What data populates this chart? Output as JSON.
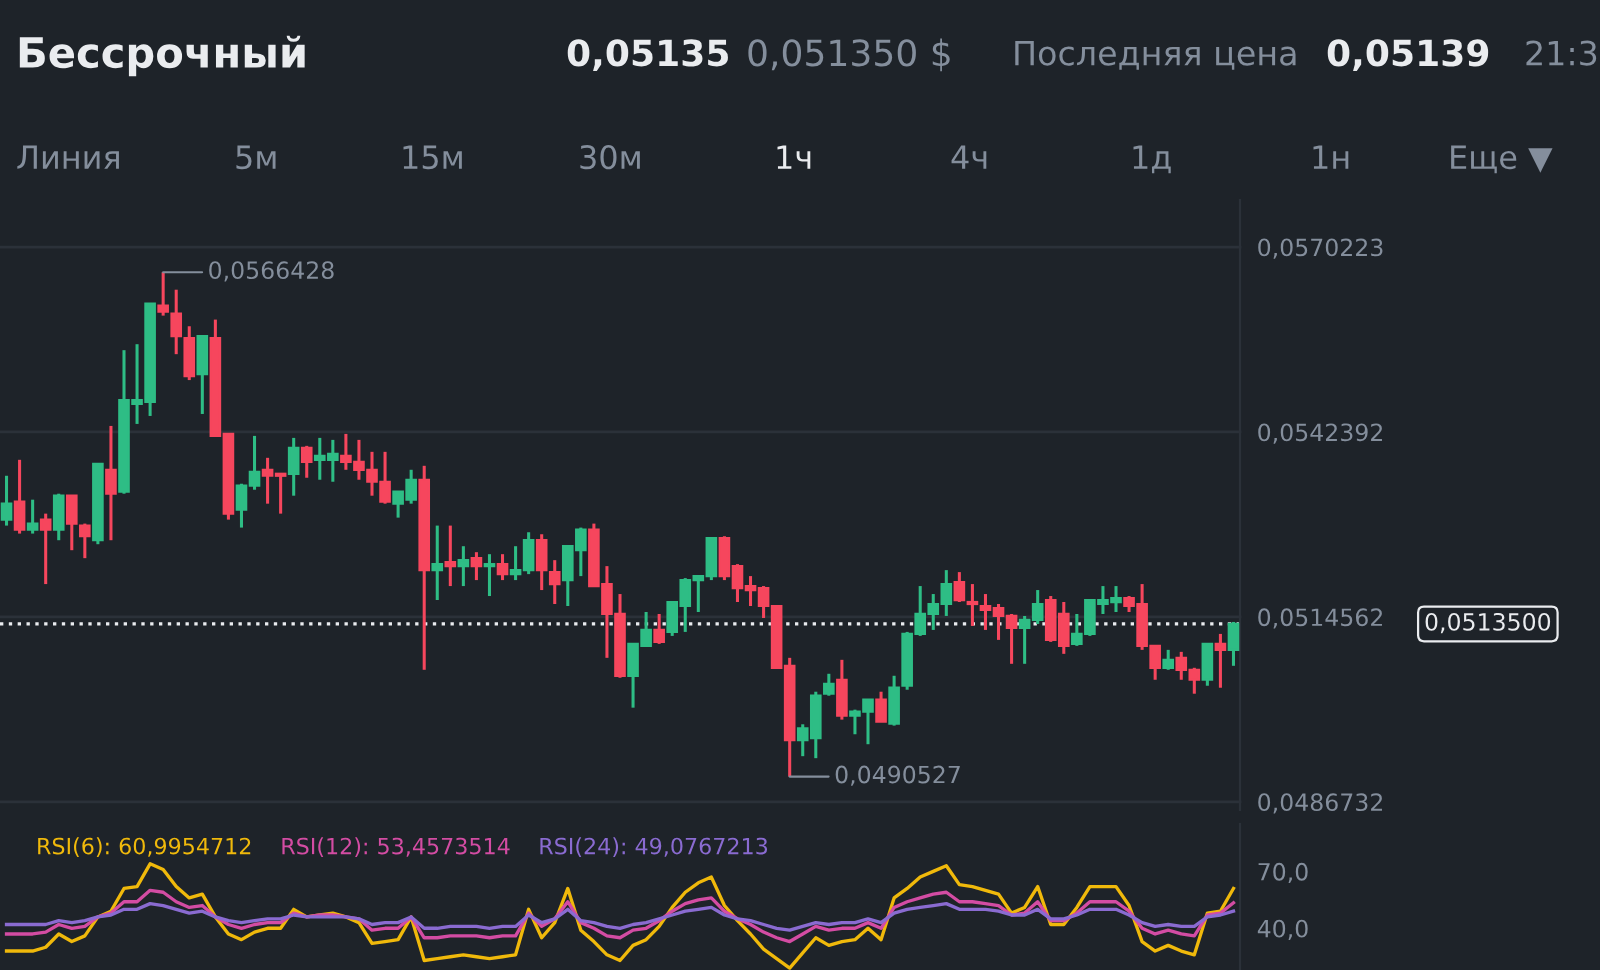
{
  "chart_data": [
    {
      "type": "candlestick",
      "title": "Бессрочный",
      "annotations": [
        "0,05135",
        "0,051350 $",
        "Последняя цена",
        "0,05139",
        "21:3",
        "Линия",
        "5м",
        "15м",
        "30м",
        "1ч",
        "4ч",
        "1д",
        "1н",
        "Еще ▼",
        "0,0566428",
        "0,0490527"
      ],
      "categories": [
        null,
        null,
        null,
        null,
        null,
        null,
        null,
        null,
        null,
        null,
        null,
        null,
        null,
        null,
        null,
        null,
        null,
        null,
        null,
        null,
        null,
        null,
        null,
        null,
        null,
        null,
        null,
        null,
        null,
        null,
        null,
        null,
        null,
        null,
        null,
        null,
        null,
        null,
        null,
        null,
        null,
        null,
        null,
        null,
        null,
        null,
        null,
        null,
        null,
        null,
        null,
        null,
        null,
        null,
        null,
        null,
        null,
        null,
        null,
        null,
        null,
        null,
        null,
        null,
        null,
        null,
        null,
        null,
        null,
        null,
        null,
        null,
        null,
        null,
        null,
        null,
        null,
        null,
        null,
        null,
        null,
        null,
        null,
        null,
        null,
        null,
        null,
        null,
        null,
        null,
        null,
        null,
        null,
        null,
        null
      ],
      "ohlc": [
        [
          0.05292,
          0.05358,
          0.05283,
          0.05316
        ],
        [
          0.05319,
          0.05382,
          0.05271,
          0.05277
        ],
        [
          0.05277,
          0.05322,
          0.05271,
          0.05286
        ],
        [
          0.05292,
          0.05301,
          0.05195,
          0.05277
        ],
        [
          0.05277,
          0.05331,
          0.05261,
          0.05328
        ],
        [
          0.05328,
          0.05328,
          0.05246,
          0.05286
        ],
        [
          0.05283,
          0.05286,
          0.05234,
          0.05267
        ],
        [
          0.05261,
          0.05376,
          0.05255,
          0.05376
        ],
        [
          0.05367,
          0.05433,
          0.05261,
          0.05331
        ],
        [
          0.05334,
          0.05547,
          0.05331,
          0.05472
        ],
        [
          0.05466,
          0.05556,
          0.05436,
          0.05472
        ],
        [
          0.05469,
          0.05617,
          0.05448,
          0.05617
        ],
        [
          0.05614,
          0.0566428,
          0.05599,
          0.05605
        ],
        [
          0.05602,
          0.05638,
          0.05541,
          0.05568
        ],
        [
          0.05565,
          0.05583,
          0.05502,
          0.05508
        ],
        [
          0.05511,
          0.05568,
          0.05451,
          0.05568
        ],
        [
          0.05565,
          0.05593,
          0.05418,
          0.05418
        ],
        [
          0.05421,
          0.05421,
          0.05292,
          0.05301
        ],
        [
          0.05307,
          0.05346,
          0.0528,
          0.05343
        ],
        [
          0.05343,
          0.05418,
          0.05337,
          0.05364
        ],
        [
          0.05367,
          0.05385,
          0.05316,
          0.05358
        ],
        [
          0.05361,
          0.05361,
          0.05301,
          0.05358
        ],
        [
          0.05361,
          0.05415,
          0.05328,
          0.054
        ],
        [
          0.054,
          0.05403,
          0.05355,
          0.05379
        ],
        [
          0.05382,
          0.05415,
          0.05352,
          0.05388
        ],
        [
          0.05382,
          0.05412,
          0.05349,
          0.05391
        ],
        [
          0.05388,
          0.05421,
          0.05367,
          0.05379
        ],
        [
          0.05379,
          0.05412,
          0.05352,
          0.05367
        ],
        [
          0.05367,
          0.05394,
          0.05328,
          0.05349
        ],
        [
          0.05349,
          0.05394,
          0.05316,
          0.05319
        ],
        [
          0.05316,
          0.05334,
          0.05295,
          0.05334
        ],
        [
          0.05322,
          0.05367,
          0.05316,
          0.05352
        ],
        [
          0.05352,
          0.05373,
          0.05066,
          0.05216
        ],
        [
          0.05216,
          0.05283,
          0.05171,
          0.05225
        ],
        [
          0.05228,
          0.05283,
          0.05192,
          0.05222
        ],
        [
          0.05222,
          0.05252,
          0.05192,
          0.05231
        ],
        [
          0.05234,
          0.05243,
          0.05201,
          0.05222
        ],
        [
          0.05222,
          0.0524,
          0.05177,
          0.05225
        ],
        [
          0.05225,
          0.0524,
          0.05201,
          0.0521
        ],
        [
          0.0521,
          0.05252,
          0.05201,
          0.05216
        ],
        [
          0.05216,
          0.05273,
          0.0521,
          0.05261
        ],
        [
          0.05261,
          0.0527,
          0.05186,
          0.05216
        ],
        [
          0.05213,
          0.05231,
          0.05165,
          0.05195
        ],
        [
          0.05201,
          0.05252,
          0.05162,
          0.05252
        ],
        [
          0.05246,
          0.0528,
          0.05207,
          0.05277
        ],
        [
          0.05277,
          0.05286,
          0.05192,
          0.05192
        ],
        [
          0.05195,
          0.05222,
          0.05084,
          0.0515
        ],
        [
          0.0515,
          0.0518,
          0.05054,
          0.05057
        ],
        [
          0.05057,
          0.05105,
          0.05009,
          0.05105
        ],
        [
          0.05102,
          0.05153,
          0.05102,
          0.05126
        ],
        [
          0.05126,
          0.0515,
          0.05105,
          0.05108
        ],
        [
          0.05123,
          0.05168,
          0.05117,
          0.05168
        ],
        [
          0.05162,
          0.05204,
          0.05123,
          0.05201
        ],
        [
          0.05201,
          0.05207,
          0.05153,
          0.05207
        ],
        [
          0.05207,
          0.05264,
          0.05201,
          0.05264
        ],
        [
          0.05264,
          0.05267,
          0.05201,
          0.05207
        ],
        [
          0.05222,
          0.05225,
          0.05168,
          0.05189
        ],
        [
          0.05192,
          0.05207,
          0.05162,
          0.05186
        ],
        [
          0.05189,
          0.05192,
          0.05144,
          0.05162
        ],
        [
          0.05162,
          0.05162,
          0.05069,
          0.05069
        ],
        [
          0.05072,
          0.05084,
          0.0490527,
          0.0496
        ],
        [
          0.0496,
          0.04984,
          0.04936,
          0.04978
        ],
        [
          0.04963,
          0.05033,
          0.04933,
          0.05027
        ],
        [
          0.0503,
          0.0506,
          0.05027,
          0.05045
        ],
        [
          0.05051,
          0.05081,
          0.04991,
          0.04997
        ],
        [
          0.04997,
          0.05006,
          0.04969,
          0.05003
        ],
        [
          0.05003,
          0.05021,
          0.04954,
          0.05021
        ],
        [
          0.05021,
          0.05033,
          0.04988,
          0.04988
        ],
        [
          0.04985,
          0.05057,
          0.04982,
          0.05039
        ],
        [
          0.05042,
          0.05123,
          0.05036,
          0.0512
        ],
        [
          0.0512,
          0.05192,
          0.05117,
          0.0515
        ],
        [
          0.0515,
          0.0518,
          0.05126,
          0.05165
        ],
        [
          0.05165,
          0.05216,
          0.05147,
          0.05195
        ],
        [
          0.05198,
          0.05213,
          0.05168,
          0.05171
        ],
        [
          0.05168,
          0.05195,
          0.05132,
          0.05165
        ],
        [
          0.05162,
          0.0518,
          0.05126,
          0.05156
        ],
        [
          0.05159,
          0.05165,
          0.05111,
          0.05147
        ],
        [
          0.05147,
          0.0515,
          0.05075,
          0.05129
        ],
        [
          0.05129,
          0.05147,
          0.05075,
          0.05141
        ],
        [
          0.05141,
          0.05186,
          0.05135,
          0.05165
        ],
        [
          0.05171,
          0.05177,
          0.05108,
          0.05111
        ],
        [
          0.0515,
          0.05168,
          0.0509,
          0.05102
        ],
        [
          0.05105,
          0.0515,
          0.05102,
          0.0512
        ],
        [
          0.0512,
          0.05171,
          0.05117,
          0.05171
        ],
        [
          0.05165,
          0.05192,
          0.0515,
          0.05171
        ],
        [
          0.05168,
          0.05192,
          0.05153,
          0.05174
        ],
        [
          0.05174,
          0.05177,
          0.05153,
          0.05162
        ],
        [
          0.05165,
          0.05195,
          0.05096,
          0.05102
        ],
        [
          0.05102,
          0.05102,
          0.05051,
          0.05069
        ],
        [
          0.05069,
          0.05096,
          0.05066,
          0.05081
        ],
        [
          0.05084,
          0.05093,
          0.05051,
          0.05066
        ],
        [
          0.05066,
          0.05069,
          0.0503,
          0.05051
        ],
        [
          0.05051,
          0.05105,
          0.05042,
          0.05105
        ],
        [
          0.05105,
          0.0512,
          0.05039,
          0.05096
        ],
        [
          0.05096,
          0.05138,
          0.05072,
          0.05135
        ]
      ],
      "ylim": [
        0.04855,
        0.05773
      ],
      "yticks": [
        {
          "value": 0.0570223,
          "label": "0,0570223"
        },
        {
          "value": 0.0542392,
          "label": "0,0542392"
        },
        {
          "value": 0.0514562,
          "label": "0,0514562"
        },
        {
          "value": 0.0486732,
          "label": "0,0486732"
        }
      ],
      "ref_lines": [
        {
          "axis": "y",
          "value": 0.05135,
          "label": "0,0513500",
          "line_style": "dotted",
          "color": "#eaecef"
        }
      ],
      "grid": "y",
      "tick_labels": "y"
    },
    {
      "type": "line",
      "categories": [
        null,
        null,
        null,
        null,
        null,
        null,
        null,
        null,
        null,
        null,
        null,
        null,
        null,
        null,
        null,
        null,
        null,
        null,
        null,
        null,
        null,
        null,
        null,
        null,
        null,
        null,
        null,
        null,
        null,
        null,
        null,
        null,
        null,
        null,
        null,
        null,
        null,
        null,
        null,
        null,
        null,
        null,
        null,
        null,
        null,
        null,
        null,
        null,
        null,
        null,
        null,
        null,
        null,
        null,
        null,
        null,
        null,
        null,
        null,
        null,
        null,
        null,
        null,
        null,
        null,
        null,
        null,
        null,
        null,
        null,
        null,
        null,
        null,
        null,
        null,
        null,
        null,
        null,
        null,
        null,
        null,
        null,
        null,
        null,
        null,
        null,
        null,
        null,
        null,
        null,
        null,
        null,
        null,
        null,
        null
      ],
      "series": [
        {
          "name": "RSI(6): 60,9954712",
          "color": "#f0b90b",
          "values": [
            28,
            28,
            28,
            30,
            37,
            33,
            36,
            46,
            49,
            61,
            62,
            74,
            71,
            62,
            56,
            58,
            46,
            37,
            34,
            38,
            40,
            40,
            50,
            46,
            47,
            48,
            46,
            43,
            32,
            33,
            34,
            46,
            23,
            24,
            25,
            26,
            25,
            24,
            25,
            26,
            50,
            35,
            43,
            61,
            39,
            33,
            26,
            23,
            31,
            34,
            41,
            51,
            59,
            64,
            67,
            52,
            44,
            37,
            29,
            24,
            19,
            27,
            35,
            31,
            33,
            34,
            40,
            34,
            56,
            61,
            67,
            70,
            73,
            63,
            62,
            60,
            58,
            48,
            51,
            62,
            42,
            42,
            51,
            62,
            62,
            62,
            52,
            33,
            28,
            31,
            28,
            26,
            48,
            49,
            60.99
          ]
        },
        {
          "name": "RSI(12): 53,4573514",
          "color": "#d34ca3",
          "values": [
            37,
            37,
            37,
            38,
            42,
            40,
            41,
            46,
            48,
            54,
            54,
            60,
            59,
            54,
            51,
            52,
            46,
            42,
            40,
            42,
            43,
            43,
            48,
            46,
            47,
            47,
            46,
            45,
            39,
            40,
            40,
            46,
            35,
            35,
            36,
            36,
            36,
            35,
            36,
            36,
            48,
            41,
            45,
            54,
            43,
            40,
            36,
            35,
            39,
            40,
            44,
            49,
            53,
            55,
            56,
            49,
            45,
            42,
            38,
            35,
            33,
            37,
            41,
            39,
            40,
            40,
            43,
            40,
            51,
            54,
            56,
            58,
            59,
            54,
            54,
            53,
            52,
            47,
            48,
            54,
            44,
            44,
            48,
            54,
            54,
            54,
            49,
            40,
            37,
            39,
            37,
            36,
            47,
            48,
            53.46
          ]
        },
        {
          "name": "RSI(24): 49,0767213",
          "color": "#8a6bd1",
          "values": [
            42,
            42,
            42,
            42,
            44,
            43,
            44,
            46,
            47,
            50,
            50,
            53,
            52,
            50,
            48,
            49,
            46,
            44,
            43,
            44,
            45,
            45,
            47,
            46,
            46,
            46,
            46,
            45,
            42,
            43,
            43,
            46,
            40,
            40,
            41,
            41,
            41,
            40,
            41,
            41,
            47,
            43,
            45,
            50,
            44,
            43,
            41,
            40,
            42,
            43,
            45,
            47,
            49,
            50,
            51,
            47,
            45,
            44,
            42,
            40,
            39,
            41,
            43,
            42,
            43,
            43,
            45,
            43,
            48,
            50,
            51,
            52,
            53,
            50,
            50,
            50,
            49,
            47,
            47,
            50,
            45,
            45,
            47,
            50,
            50,
            50,
            47,
            43,
            41,
            42,
            41,
            41,
            46,
            47,
            49.08
          ]
        }
      ],
      "ylim": [
        18,
        95
      ],
      "yticks": [
        {
          "value": 70,
          "label": "70,0"
        },
        {
          "value": 40,
          "label": "40,0"
        }
      ],
      "tick_labels": "y"
    }
  ]
}
